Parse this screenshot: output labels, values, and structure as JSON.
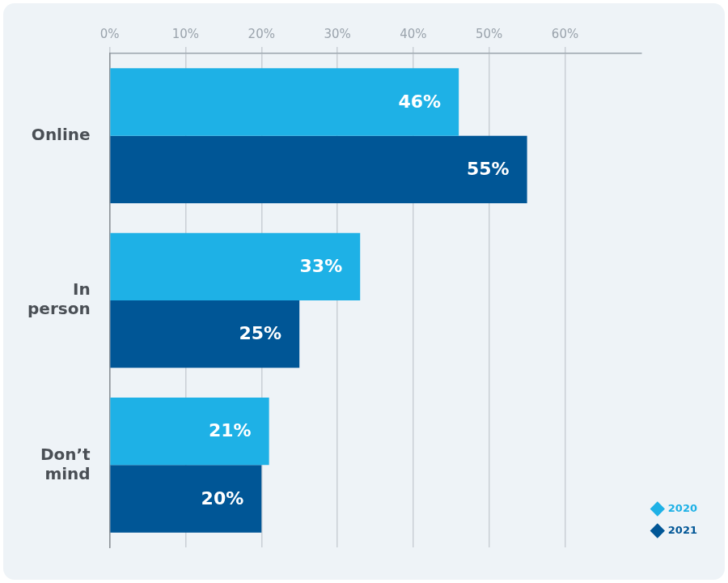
{
  "chart_data": {
    "type": "bar",
    "orientation": "horizontal",
    "categories": [
      "Online",
      "In person",
      "Don’t mind"
    ],
    "series": [
      {
        "name": "2020",
        "color": "#1EB1E6",
        "values": [
          46,
          33,
          21
        ],
        "value_labels": [
          "46%",
          "33%",
          "21%"
        ]
      },
      {
        "name": "2021",
        "color": "#005696",
        "values": [
          55,
          25,
          20
        ],
        "value_labels": [
          "55%",
          "25%",
          "20%"
        ]
      }
    ],
    "xlim": [
      0,
      70
    ],
    "xticks": [
      {
        "value": 0,
        "label": "0%"
      },
      {
        "value": 10,
        "label": "10%"
      },
      {
        "value": 20,
        "label": "20%"
      },
      {
        "value": 30,
        "label": "30%"
      },
      {
        "value": 40,
        "label": "40%"
      },
      {
        "value": 50,
        "label": "50%"
      },
      {
        "value": 60,
        "label": "60%"
      }
    ],
    "grid": true,
    "data_labels": true,
    "legend": "lower right"
  }
}
